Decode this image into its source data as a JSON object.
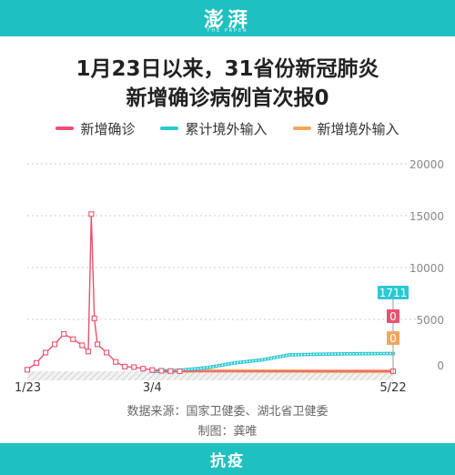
{
  "header": {
    "brand": "澎湃",
    "brand_sub": "THE PAPER"
  },
  "title_line1": "1月23日以来，31省份新冠肺炎",
  "title_line2": "新增确诊病例首次报0",
  "source": "数据来源：国家卫健委、湖北省卫健委",
  "credit": "制图：龚唯",
  "footer": {
    "label": "抗疫"
  },
  "colors": {
    "new_confirmed": "#e8526e",
    "imported_cumulative": "#2ec8d4",
    "imported_new": "#f5a65b",
    "brand": "#1ec0c0"
  },
  "chart_data": {
    "type": "line",
    "title": "1月23日以来，31省份新冠肺炎新增确诊病例首次报0",
    "x_range": [
      "1/23",
      "5/22"
    ],
    "x_ticks": [
      "1/23",
      "3/4",
      "5/22"
    ],
    "yticks": [
      "20000",
      "15000",
      "10000",
      "5000",
      "0"
    ],
    "ylim": [
      0,
      20000
    ],
    "grid": true,
    "legend_position": "top",
    "series": [
      {
        "name": "新增确诊",
        "color": "#e8526e",
        "x": [
          "1/23",
          "1/26",
          "1/29",
          "2/1",
          "2/4",
          "2/7",
          "2/10",
          "2/12",
          "2/13",
          "2/14",
          "2/15",
          "2/18",
          "2/21",
          "2/24",
          "2/27",
          "3/1",
          "3/4",
          "3/7",
          "3/10",
          "3/13",
          "5/22"
        ],
        "values": [
          150,
          800,
          1800,
          2600,
          3600,
          3100,
          2500,
          1900,
          15150,
          5100,
          2600,
          1800,
          900,
          450,
          400,
          250,
          120,
          50,
          20,
          10,
          0
        ]
      },
      {
        "name": "累计境外输入",
        "color": "#2ec8d4",
        "x": [
          "3/4",
          "3/13",
          "3/22",
          "3/31",
          "4/9",
          "4/18",
          "4/27",
          "5/6",
          "5/15",
          "5/22"
        ],
        "values": [
          0,
          90,
          350,
          800,
          1100,
          1580,
          1640,
          1680,
          1700,
          1711
        ]
      },
      {
        "name": "新增境外输入",
        "color": "#f5a65b",
        "x": [
          "3/4",
          "3/13",
          "3/22",
          "3/31",
          "4/9",
          "4/18",
          "4/27",
          "5/6",
          "5/15",
          "5/22"
        ],
        "values": [
          0,
          10,
          40,
          40,
          25,
          20,
          5,
          3,
          2,
          0
        ]
      }
    ],
    "end_labels": [
      {
        "series": "累计境外输入",
        "text": "1711",
        "color": "#2ec8d4"
      },
      {
        "series": "新增确诊",
        "text": "0",
        "color": "#e8526e"
      },
      {
        "series": "新增境外输入",
        "text": "0",
        "color": "#f5a65b"
      }
    ]
  }
}
